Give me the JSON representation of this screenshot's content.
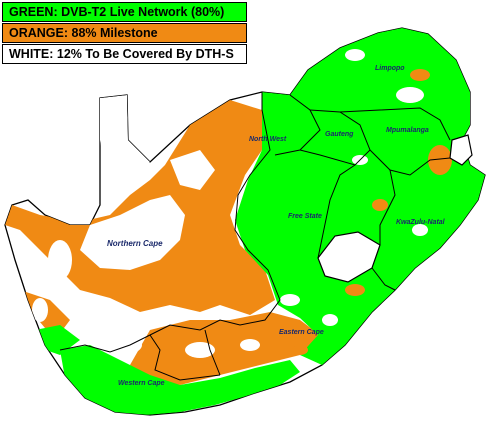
{
  "legend": {
    "green": {
      "label": "GREEN: DVB-T2 Live Network (80%)",
      "color": "#00ff00"
    },
    "orange": {
      "label": "ORANGE: 88% Milestone",
      "color": "#f08a14"
    },
    "white": {
      "label": "WHITE: 12%  To Be Covered By DTH-S",
      "color": "#ffffff"
    }
  },
  "regions": {
    "limpopo": "Limpopo",
    "mpumalanga": "Mpumalanga",
    "gauteng": "Gauteng",
    "north_west": "North West",
    "free_state": "Free State",
    "kwazulu_natal": "KwaZulu-Natal",
    "northern_cape": "Northern Cape",
    "eastern_cape": "Eastern Cape",
    "western_cape": "Western Cape"
  }
}
